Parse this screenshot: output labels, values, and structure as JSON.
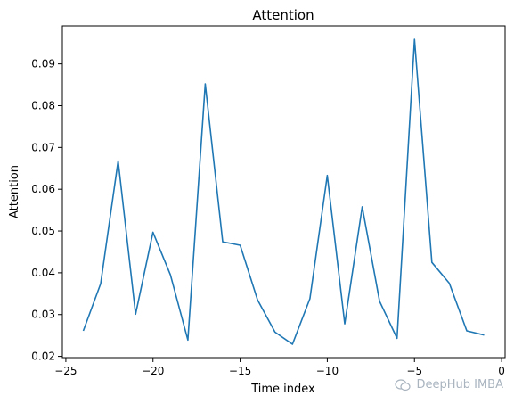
{
  "chart_data": {
    "type": "line",
    "title": "Attention",
    "xlabel": "Time index",
    "ylabel": "Attention",
    "xlim": [
      -25.2,
      0.2
    ],
    "ylim": [
      0.0197,
      0.0991
    ],
    "xticks": [
      -25,
      -20,
      -15,
      -10,
      -5,
      0
    ],
    "xtick_labels": [
      "−25",
      "−20",
      "−15",
      "−10",
      "−5",
      "0"
    ],
    "yticks": [
      0.02,
      0.03,
      0.04,
      0.05,
      0.06,
      0.07,
      0.08,
      0.09
    ],
    "ytick_labels": [
      "0.02",
      "0.03",
      "0.04",
      "0.05",
      "0.06",
      "0.07",
      "0.08",
      "0.09"
    ],
    "grid": false,
    "series": [
      {
        "color": "#1f77b4",
        "x": [
          -24,
          -23,
          -22,
          -21,
          -20,
          -19,
          -18,
          -17,
          -16,
          -15,
          -14,
          -13,
          -12,
          -11,
          -10,
          -9,
          -8,
          -7,
          -6,
          -5,
          -4,
          -3,
          -2,
          -1
        ],
        "y": [
          0.0261,
          0.0374,
          0.0668,
          0.0301,
          0.0497,
          0.0395,
          0.0239,
          0.0852,
          0.0474,
          0.0466,
          0.0335,
          0.0258,
          0.0229,
          0.0338,
          0.0633,
          0.0278,
          0.0558,
          0.0332,
          0.0243,
          0.0959,
          0.0425,
          0.0375,
          0.0261,
          0.0251
        ]
      }
    ]
  },
  "watermark": {
    "text": "DeepHub IMBA",
    "icon": "wechat-icon"
  }
}
